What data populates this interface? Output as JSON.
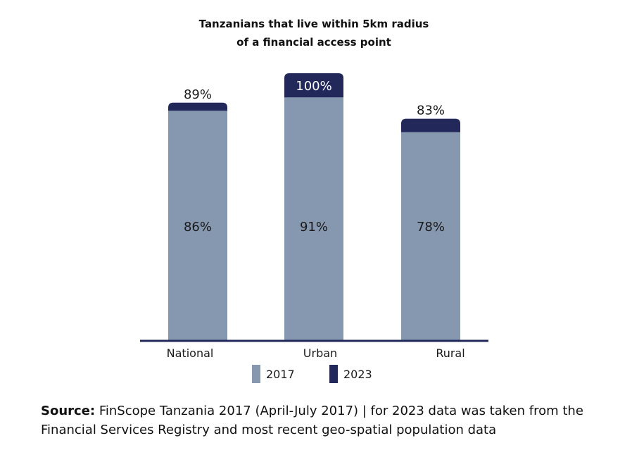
{
  "chart_data": {
    "type": "bar",
    "title_lines": [
      "Tanzanians that live within 5km radius",
      "of a financial access point"
    ],
    "categories": [
      "National",
      "Urban",
      "Rural"
    ],
    "series": [
      {
        "name": "2017",
        "values": [
          86,
          91,
          78
        ],
        "labels": [
          "86%",
          "91%",
          "78%"
        ]
      },
      {
        "name": "2023",
        "values": [
          89,
          100,
          83
        ],
        "labels": [
          "89%",
          "100%",
          "83%"
        ]
      }
    ],
    "ylim": [
      0,
      100
    ],
    "grid": false,
    "legend": "bottom",
    "colors": {
      "2017": "#8697b0",
      "2023": "#22295a",
      "baseline": "#22295a"
    }
  },
  "source": {
    "lead": "Source:",
    "text": " FinScope Tanzania 2017 (April-July 2017) | for 2023 data was taken from the Financial Services Registry and most recent geo-spatial population data"
  }
}
